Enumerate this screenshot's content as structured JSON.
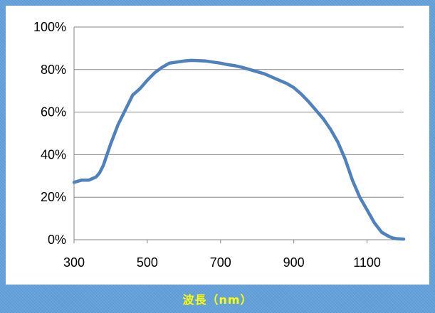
{
  "chart_data": {
    "type": "line",
    "title": "",
    "xlabel": "波長（nm）",
    "ylabel": "",
    "xlim": [
      300,
      1200
    ],
    "ylim": [
      0,
      100
    ],
    "x_ticks": [
      300,
      500,
      700,
      900,
      1100
    ],
    "x_tick_labels": [
      "300",
      "500",
      "700",
      "900",
      "1100"
    ],
    "y_ticks": [
      0,
      20,
      40,
      60,
      80,
      100
    ],
    "y_tick_labels": [
      "0%",
      "20%",
      "40%",
      "60%",
      "80%",
      "100%"
    ],
    "grid": "horizontal",
    "legend": "none",
    "series": [
      {
        "color": "#4f81bd",
        "x": [
          300,
          320,
          340,
          360,
          370,
          380,
          390,
          400,
          420,
          440,
          460,
          480,
          500,
          520,
          540,
          560,
          580,
          600,
          620,
          640,
          660,
          680,
          700,
          720,
          740,
          760,
          780,
          800,
          820,
          840,
          860,
          880,
          900,
          920,
          940,
          960,
          980,
          1000,
          1020,
          1040,
          1060,
          1080,
          1100,
          1120,
          1140,
          1160,
          1170,
          1180,
          1200
        ],
        "y": [
          27,
          28,
          28,
          29.5,
          31.5,
          35,
          40,
          45,
          54,
          61,
          68,
          71,
          75,
          78.5,
          81,
          83,
          83.5,
          84,
          84.3,
          84.2,
          84,
          83.5,
          83,
          82.3,
          81.8,
          81,
          80,
          79,
          78,
          76.5,
          75,
          73.5,
          71.5,
          68.5,
          65,
          61,
          57,
          52,
          46,
          38,
          28,
          20,
          14,
          8,
          3.5,
          1.5,
          0.8,
          0.5,
          0.3
        ]
      }
    ],
    "colors": {
      "line": "#4f81bd",
      "grid": "#868686",
      "background": "#5b9bd5",
      "plot_background": "#ffffff",
      "xlabel_text": "#ffff00"
    }
  }
}
